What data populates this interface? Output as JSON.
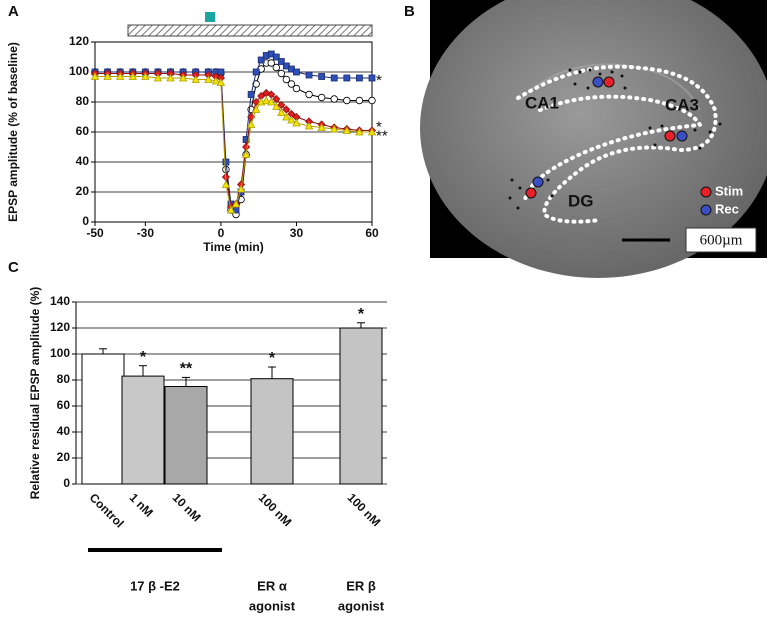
{
  "chart_data": [
    {
      "type": "line",
      "label": "A",
      "xlabel": "Time (min)",
      "ylabel": "EPSP amplitude (% of baseline)",
      "x": [
        -50,
        -45,
        -40,
        -35,
        -30,
        -25,
        -20,
        -15,
        -10,
        -5,
        -2,
        0,
        2,
        4,
        6,
        8,
        10,
        12,
        14,
        16,
        18,
        20,
        22,
        24,
        26,
        28,
        30,
        35,
        40,
        45,
        50,
        55,
        60
      ],
      "series": [
        {
          "color": "#ffffff",
          "edgecolor": "#000000",
          "marker": "circle",
          "values": [
            100,
            100,
            100,
            100,
            100,
            100,
            100,
            100,
            100,
            100,
            100,
            99,
            35,
            8,
            5,
            15,
            45,
            75,
            92,
            102,
            106,
            106,
            103,
            99,
            95,
            92,
            89,
            85,
            83,
            82,
            81,
            81,
            81
          ]
        },
        {
          "color": "#2f4fb8",
          "edgecolor": "#1a2a70",
          "marker": "square",
          "values": [
            100,
            100,
            100,
            100,
            100,
            100,
            100,
            100,
            100,
            100,
            100,
            100,
            40,
            12,
            8,
            20,
            55,
            85,
            100,
            108,
            111,
            112,
            110,
            107,
            104,
            102,
            100,
            98,
            97,
            96,
            96,
            96,
            96
          ]
        },
        {
          "color": "#e02020",
          "edgecolor": "#901010",
          "marker": "diamond",
          "values": [
            99,
            99,
            99,
            99,
            99,
            99,
            99,
            98,
            98,
            98,
            97,
            96,
            30,
            10,
            12,
            25,
            50,
            70,
            80,
            84,
            86,
            85,
            82,
            78,
            75,
            72,
            70,
            67,
            65,
            63,
            62,
            61,
            61
          ]
        },
        {
          "color": "#f2e600",
          "edgecolor": "#b0a000",
          "marker": "triangle",
          "values": [
            97,
            97,
            97,
            97,
            97,
            96,
            96,
            96,
            95,
            95,
            94,
            93,
            25,
            8,
            12,
            22,
            45,
            65,
            75,
            80,
            81,
            80,
            77,
            73,
            70,
            68,
            66,
            64,
            63,
            62,
            61,
            60,
            60
          ]
        }
      ],
      "xlim": [
        -50,
        60
      ],
      "ylim": [
        0,
        120
      ],
      "xticks": [
        -50,
        -30,
        0,
        30,
        60
      ],
      "yticks": [
        0,
        20,
        40,
        60,
        80,
        100,
        120
      ],
      "grid": true,
      "annotations": [
        {
          "text": "*",
          "y": 96
        },
        {
          "text": "*",
          "y": 65
        },
        {
          "text": "**",
          "y": 59
        }
      ]
    },
    {
      "type": "bar",
      "label": "C",
      "ylabel": "Relative residual EPSP amplitude (%)",
      "categories": [
        "Control",
        "1 nM",
        "10 nM",
        "100 nM",
        "100 nM"
      ],
      "values": [
        100,
        83,
        75,
        81,
        120
      ],
      "errors": [
        4,
        8,
        7,
        9,
        4
      ],
      "colors": [
        "#ffffff",
        "#c8c8c8",
        "#a8a8a8",
        "#c4c4c4",
        "#c4c4c4"
      ],
      "significance": [
        null,
        "*",
        "**",
        "*",
        "*"
      ],
      "ylim": [
        0,
        140
      ],
      "yticks": [
        0,
        20,
        40,
        60,
        80,
        100,
        120,
        140
      ],
      "grid": true,
      "groups": [
        [
          "17 β -E2"
        ],
        [
          "ER α",
          "agonist"
        ],
        [
          "ER β",
          "agonist"
        ]
      ]
    }
  ],
  "image_panel": {
    "label": "B",
    "regions": [
      "CA1",
      "CA3",
      "DG"
    ],
    "legend": [
      {
        "name": "Stim",
        "color": "#e8202a"
      },
      {
        "name": "Rec",
        "color": "#3b4fc4"
      }
    ],
    "scale_bar": "600µm"
  }
}
